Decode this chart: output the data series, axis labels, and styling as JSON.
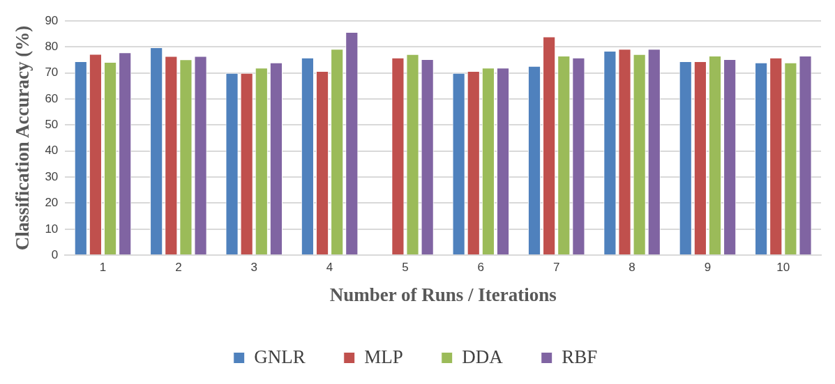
{
  "chart_data": {
    "type": "bar",
    "xlabel": "Number of Runs / Iterations",
    "ylabel": "Classification Accuracy (%)",
    "categories": [
      "1",
      "2",
      "3",
      "4",
      "5",
      "6",
      "7",
      "8",
      "9",
      "10"
    ],
    "series": [
      {
        "name": "GNLR",
        "color": "#4f81bd",
        "values": [
          74.5,
          79.8,
          70,
          75.9,
          null,
          70,
          72.7,
          78.5,
          74.5,
          74
        ]
      },
      {
        "name": "MLP",
        "color": "#c0504d",
        "values": [
          77.3,
          76.5,
          70,
          70.7,
          75.9,
          70.7,
          84,
          79.2,
          74.5,
          75.9
        ]
      },
      {
        "name": "DDA",
        "color": "#9bbb59",
        "values": [
          74.2,
          75.2,
          72,
          79.2,
          77.2,
          72,
          76.6,
          77.2,
          76.6,
          74
        ]
      },
      {
        "name": "RBF",
        "color": "#8064a2",
        "values": [
          77.9,
          76.5,
          74,
          85.7,
          75.3,
          72,
          75.9,
          79.2,
          75.3,
          76.6
        ]
      }
    ],
    "ylim": [
      0,
      90
    ],
    "yticks": [
      0,
      10,
      20,
      30,
      40,
      50,
      60,
      70,
      80,
      90
    ],
    "grid": "y",
    "legend": "bottom"
  }
}
